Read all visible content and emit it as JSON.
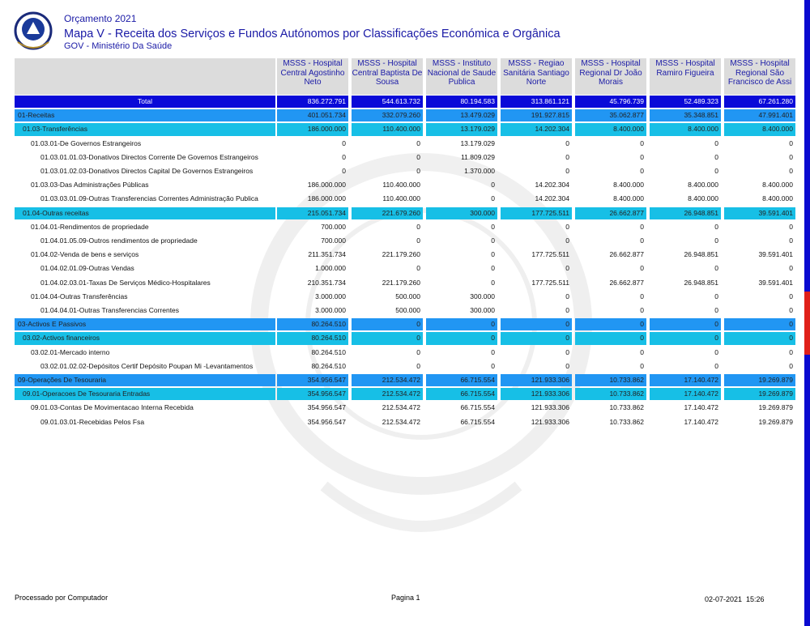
{
  "header": {
    "year_title": "Orçamento 2021",
    "title": "Mapa V - Receita dos Serviços e Fundos Autónomos por Classificações Económica e Orgânica",
    "subtitle": "GOV - Ministério Da Saúde"
  },
  "table": {
    "columns": [
      "MSSS - Hospital Central Agostinho Neto",
      "MSSS - Hospital Central Baptista De Sousa",
      "MSSS - Instituto Nacional de Saude Publica",
      "MSSS - Regiao Sanitária Santiago Norte",
      "MSSS - Hospital Regional Dr João Morais",
      "MSSS - Hospital Ramiro Figueira",
      "MSSS - Hospital Regional São Francisco de Assi"
    ],
    "rows": [
      {
        "label": "Total",
        "values": [
          "836.272.791",
          "544.613.732",
          "80.194.583",
          "313.861.121",
          "45.796.739",
          "52.489.323",
          "67.261.280"
        ]
      },
      {
        "label": "01-Receitas",
        "values": [
          "401.051.734",
          "332.079.260",
          "13.479.029",
          "191.927.815",
          "35.062.877",
          "35.348.851",
          "47.991.401"
        ]
      },
      {
        "label": "01.03-Transferências",
        "values": [
          "186.000.000",
          "110.400.000",
          "13.179.029",
          "14.202.304",
          "8.400.000",
          "8.400.000",
          "8.400.000"
        ]
      },
      {
        "label": "01.03.01-De Governos Estrangeiros",
        "values": [
          "0",
          "0",
          "13.179.029",
          "0",
          "0",
          "0",
          "0"
        ]
      },
      {
        "label": "01.03.01.01.03-Donativos Directos Corrente De Governos Estrangeiros",
        "values": [
          "0",
          "0",
          "11.809.029",
          "0",
          "0",
          "0",
          "0"
        ]
      },
      {
        "label": "01.03.01.02.03-Donativos Directos Capital De Governos Estrangeiros",
        "values": [
          "0",
          "0",
          "1.370.000",
          "0",
          "0",
          "0",
          "0"
        ]
      },
      {
        "label": "01.03.03-Das Administrações Públicas",
        "values": [
          "186.000.000",
          "110.400.000",
          "0",
          "14.202.304",
          "8.400.000",
          "8.400.000",
          "8.400.000"
        ]
      },
      {
        "label": "01.03.03.01.09-Outras Transferencias Correntes Administração Publica",
        "values": [
          "186.000.000",
          "110.400.000",
          "0",
          "14.202.304",
          "8.400.000",
          "8.400.000",
          "8.400.000"
        ]
      },
      {
        "label": "01.04-Outras receitas",
        "values": [
          "215.051.734",
          "221.679.260",
          "300.000",
          "177.725.511",
          "26.662.877",
          "26.948.851",
          "39.591.401"
        ]
      },
      {
        "label": "01.04.01-Rendimentos de propriedade",
        "values": [
          "700.000",
          "0",
          "0",
          "0",
          "0",
          "0",
          "0"
        ]
      },
      {
        "label": "01.04.01.05.09-Outros rendimentos de propriedade",
        "values": [
          "700.000",
          "0",
          "0",
          "0",
          "0",
          "0",
          "0"
        ]
      },
      {
        "label": "01.04.02-Venda de bens e serviços",
        "values": [
          "211.351.734",
          "221.179.260",
          "0",
          "177.725.511",
          "26.662.877",
          "26.948.851",
          "39.591.401"
        ]
      },
      {
        "label": "01.04.02.01.09-Outras Vendas",
        "values": [
          "1.000.000",
          "0",
          "0",
          "0",
          "0",
          "0",
          "0"
        ]
      },
      {
        "label": "01.04.02.03.01-Taxas De Serviços Médico-Hospitalares",
        "values": [
          "210.351.734",
          "221.179.260",
          "0",
          "177.725.511",
          "26.662.877",
          "26.948.851",
          "39.591.401"
        ]
      },
      {
        "label": "01.04.04-Outras Transferências",
        "values": [
          "3.000.000",
          "500.000",
          "300.000",
          "0",
          "0",
          "0",
          "0"
        ]
      },
      {
        "label": "01.04.04.01-Outras Transferencias Correntes",
        "values": [
          "3.000.000",
          "500.000",
          "300.000",
          "0",
          "0",
          "0",
          "0"
        ]
      },
      {
        "label": "03-Activos E Passivos",
        "values": [
          "80.264.510",
          "0",
          "0",
          "0",
          "0",
          "0",
          "0"
        ]
      },
      {
        "label": "03.02-Activos financeiros",
        "values": [
          "80.264.510",
          "0",
          "0",
          "0",
          "0",
          "0",
          "0"
        ]
      },
      {
        "label": "03.02.01-Mercado interno",
        "values": [
          "80.264.510",
          "0",
          "0",
          "0",
          "0",
          "0",
          "0"
        ]
      },
      {
        "label": "03.02.01.02.02-Depósitos Certif Depósito Poupan Mi -Levantamentos",
        "values": [
          "80.264.510",
          "0",
          "0",
          "0",
          "0",
          "0",
          "0"
        ]
      },
      {
        "label": "09-Operações De Tesouraria",
        "values": [
          "354.956.547",
          "212.534.472",
          "66.715.554",
          "121.933.306",
          "10.733.862",
          "17.140.472",
          "19.269.879"
        ]
      },
      {
        "label": "09.01-Operacoes De Tesouraria Entradas",
        "values": [
          "354.956.547",
          "212.534.472",
          "66.715.554",
          "121.933.306",
          "10.733.862",
          "17.140.472",
          "19.269.879"
        ]
      },
      {
        "label": "09.01.03-Contas De Movimentacao Interna Recebida",
        "values": [
          "354.956.547",
          "212.534.472",
          "66.715.554",
          "121.933.306",
          "10.733.862",
          "17.140.472",
          "19.269.879"
        ]
      },
      {
        "label": "09.01.03.01-Recebidas Pelos Fsa",
        "values": [
          "354.956.547",
          "212.534.472",
          "66.715.554",
          "121.933.306",
          "10.733.862",
          "17.140.472",
          "19.269.879"
        ]
      }
    ]
  },
  "footer": {
    "left": "Processado por Computador",
    "center": "Pagina 1",
    "date": "02-07-2021",
    "time": "15:26"
  }
}
